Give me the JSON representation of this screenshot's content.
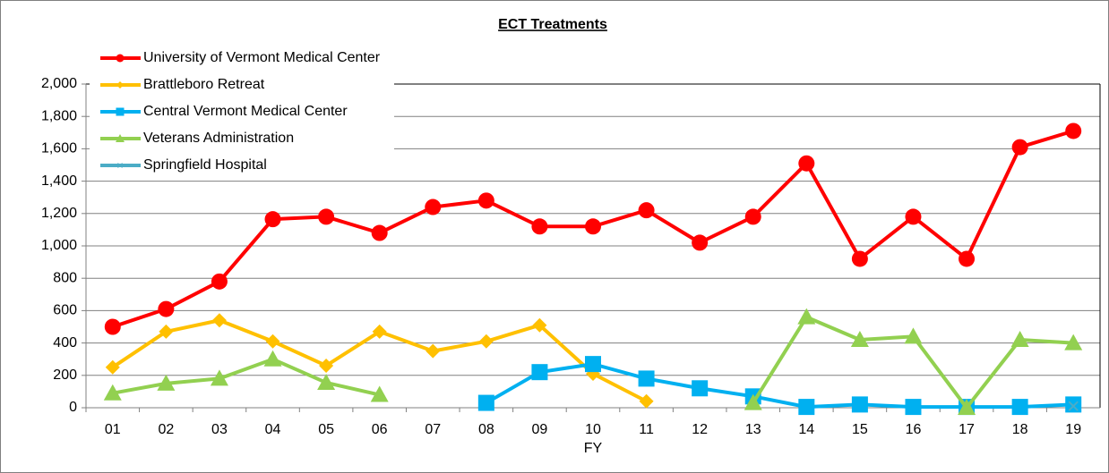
{
  "chart_data": {
    "type": "line",
    "title": "ECT Treatments",
    "x_label": "FY",
    "categories": [
      "01",
      "02",
      "03",
      "04",
      "05",
      "06",
      "07",
      "08",
      "09",
      "10",
      "11",
      "12",
      "13",
      "14",
      "15",
      "16",
      "17",
      "18",
      "19"
    ],
    "series": [
      {
        "name": "University of Vermont Medical Center",
        "color": "#ff0000",
        "marker": "circle",
        "values": [
          500,
          610,
          780,
          1165,
          1180,
          1080,
          1240,
          1280,
          1120,
          1120,
          1220,
          1020,
          1180,
          1510,
          920,
          1180,
          920,
          1610,
          1710
        ]
      },
      {
        "name": "Brattleboro Retreat",
        "color": "#ffc000",
        "marker": "diamond",
        "values": [
          250,
          470,
          540,
          410,
          260,
          470,
          350,
          410,
          510,
          210,
          40,
          null,
          null,
          null,
          null,
          null,
          null,
          null,
          null
        ]
      },
      {
        "name": "Central Vermont Medical Center",
        "color": "#00b0f0",
        "marker": "square",
        "values": [
          null,
          null,
          null,
          null,
          null,
          null,
          null,
          30,
          220,
          270,
          180,
          120,
          70,
          5,
          20,
          5,
          5,
          5,
          20
        ]
      },
      {
        "name": "Veterans Administration",
        "color": "#92d050",
        "marker": "triangle",
        "values": [
          90,
          150,
          180,
          300,
          155,
          80,
          null,
          null,
          null,
          null,
          null,
          null,
          30,
          560,
          420,
          440,
          0,
          420,
          400
        ]
      },
      {
        "name": "Springfield Hospital",
        "color": "#4bacc6",
        "marker": "x",
        "values": [
          null,
          null,
          null,
          null,
          null,
          null,
          null,
          null,
          null,
          null,
          null,
          null,
          null,
          null,
          null,
          null,
          null,
          null,
          10
        ]
      }
    ],
    "ylim": [
      0,
      2000
    ],
    "yticks": [
      0,
      200,
      400,
      600,
      800,
      {
        "value": 1000,
        "label": "1,000"
      },
      {
        "value": 1200,
        "label": "1,200"
      },
      {
        "value": 1400,
        "label": "1,400"
      },
      {
        "value": 1600,
        "label": "1,600"
      },
      {
        "value": 1800,
        "label": "1,800"
      },
      {
        "value": 2000,
        "label": "2,000"
      }
    ],
    "grid": true,
    "legend": "top-left"
  }
}
